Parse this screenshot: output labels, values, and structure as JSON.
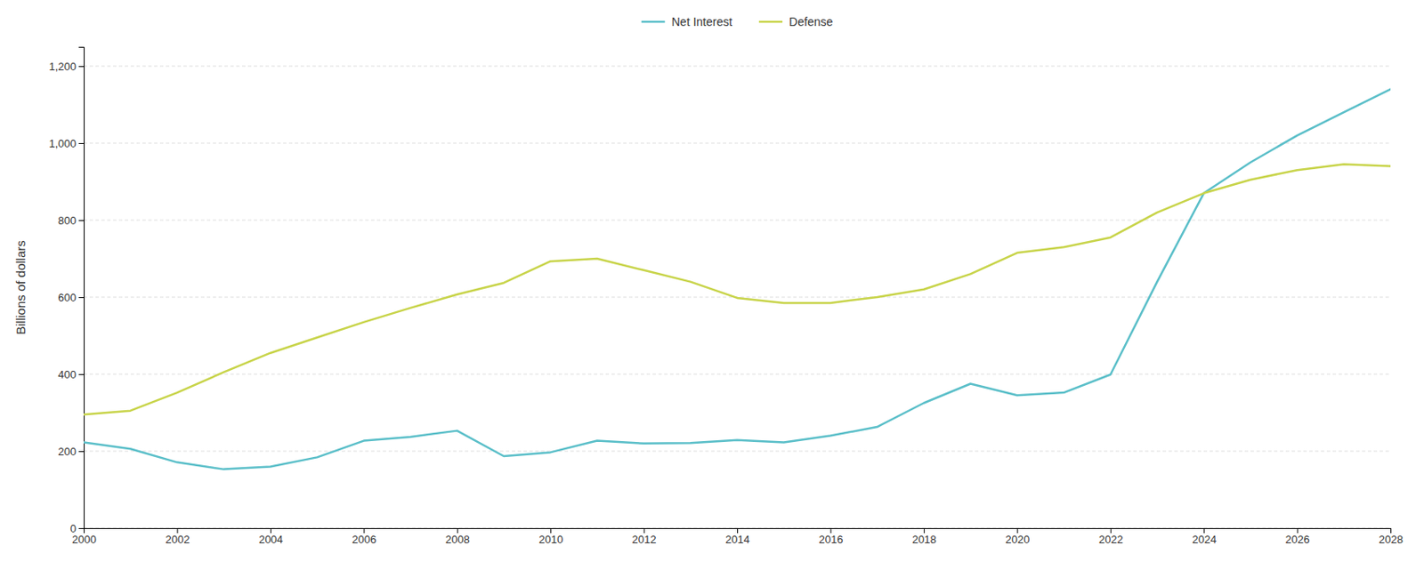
{
  "chart_data": {
    "type": "line",
    "ylabel": "Billions of dollars",
    "x": [
      2000,
      2001,
      2002,
      2003,
      2004,
      2005,
      2006,
      2007,
      2008,
      2009,
      2010,
      2011,
      2012,
      2013,
      2014,
      2015,
      2016,
      2017,
      2018,
      2019,
      2020,
      2021,
      2022,
      2023,
      2024,
      2025,
      2026,
      2027,
      2028
    ],
    "series": [
      {
        "name": "Net Interest",
        "color": "#5bbfc9",
        "values": [
          223,
          206,
          171,
          153,
          160,
          184,
          227,
          237,
          253,
          187,
          197,
          227,
          220,
          221,
          229,
          223,
          240,
          263,
          325,
          375,
          345,
          352,
          399,
          640,
          870,
          950,
          1020,
          1080,
          1140
        ]
      },
      {
        "name": "Defense",
        "color": "#c8d44a",
        "values": [
          295,
          305,
          352,
          405,
          455,
          495,
          535,
          572,
          607,
          637,
          693,
          700,
          670,
          640,
          598,
          585,
          585,
          600,
          620,
          660,
          715,
          730,
          755,
          820,
          870,
          905,
          930,
          945,
          940
        ]
      }
    ],
    "xlim": [
      2000,
      2028
    ],
    "xticks": [
      2000,
      2002,
      2004,
      2006,
      2008,
      2010,
      2012,
      2014,
      2016,
      2018,
      2020,
      2022,
      2024,
      2026,
      2028
    ],
    "ylim": [
      0,
      1250
    ],
    "yticks": [
      0,
      200,
      400,
      600,
      800,
      {
        "value": 1000,
        "label": "1,000"
      },
      {
        "value": 1200,
        "label": "1,200"
      }
    ],
    "grid": true,
    "legend": "top"
  }
}
